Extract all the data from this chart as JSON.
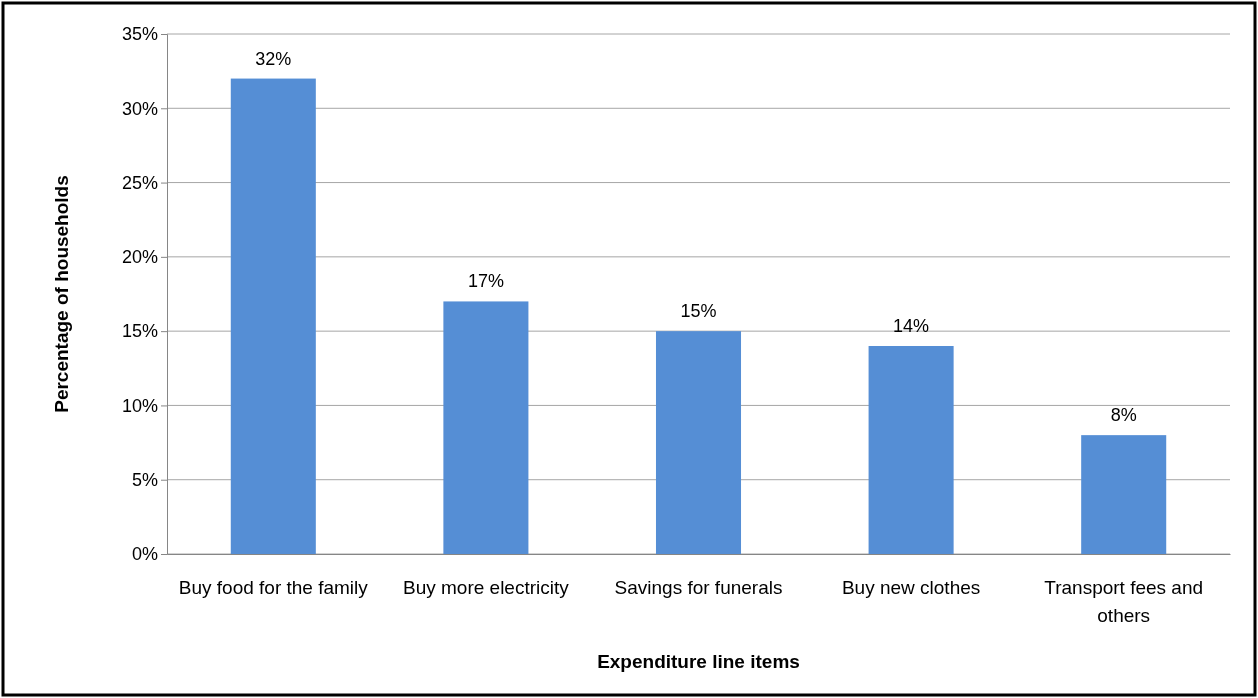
{
  "chart_data": {
    "type": "bar",
    "xlabel": "Expenditure line items",
    "ylabel": "Percentage of households",
    "categories": [
      "Buy food for the family",
      "Buy more electricity",
      "Savings for funerals",
      "Buy new clothes",
      "Transport fees and others"
    ],
    "values": [
      32,
      17,
      15,
      14,
      8
    ],
    "value_labels": [
      "32%",
      "17%",
      "15%",
      "14%",
      "8%"
    ],
    "color": "#558ed5",
    "ylim": [
      0,
      35
    ],
    "yticks": [
      {
        "value": 0,
        "label": "0%"
      },
      {
        "value": 5,
        "label": "5%"
      },
      {
        "value": 10,
        "label": "10%"
      },
      {
        "value": 15,
        "label": "15%"
      },
      {
        "value": 20,
        "label": "20%"
      },
      {
        "value": 25,
        "label": "25%"
      },
      {
        "value": 30,
        "label": "30%"
      },
      {
        "value": 35,
        "label": "35%"
      }
    ],
    "grid": "y"
  }
}
